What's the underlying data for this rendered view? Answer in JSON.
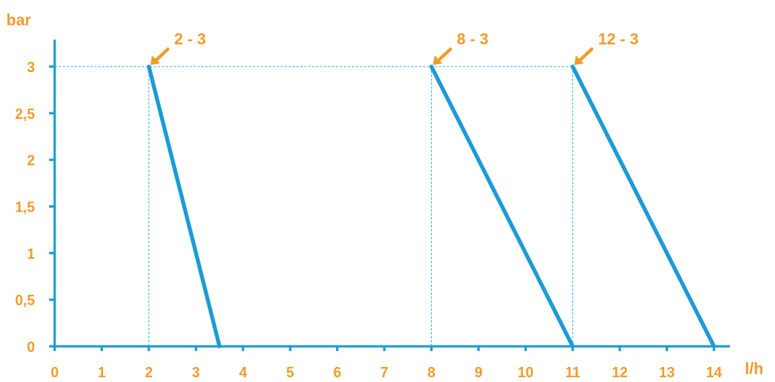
{
  "chart_data": {
    "type": "line",
    "xlabel": "l/h",
    "ylabel": "bar",
    "xlim": [
      0,
      14
    ],
    "ylim": [
      0,
      3
    ],
    "x_ticks": [
      "0",
      "1",
      "2",
      "3",
      "4",
      "5",
      "6",
      "7",
      "8",
      "9",
      "10",
      "11",
      "12",
      "13",
      "14"
    ],
    "y_ticks": [
      "0",
      "0,5",
      "1",
      "1,5",
      "2",
      "2,5",
      "3"
    ],
    "grid": false,
    "series": [
      {
        "label": "2 - 3",
        "points": [
          [
            2,
            3
          ],
          [
            3.5,
            0
          ]
        ]
      },
      {
        "label": "8 - 3",
        "points": [
          [
            8,
            3
          ],
          [
            11,
            0
          ]
        ]
      },
      {
        "label": "12 - 3",
        "points": [
          [
            11,
            3
          ],
          [
            14,
            0
          ]
        ]
      }
    ],
    "guides": [
      {
        "from": [
          0,
          3
        ],
        "to": [
          11,
          3
        ]
      },
      {
        "from": [
          2,
          3
        ],
        "to": [
          2,
          0
        ]
      },
      {
        "from": [
          8,
          3
        ],
        "to": [
          8,
          0
        ]
      },
      {
        "from": [
          11,
          3
        ],
        "to": [
          11,
          0
        ]
      }
    ],
    "colors": {
      "line": "#1b9bd6",
      "guide": "#4db3e3",
      "text": "#f39a2a",
      "axis": "#1b9bd6"
    }
  }
}
